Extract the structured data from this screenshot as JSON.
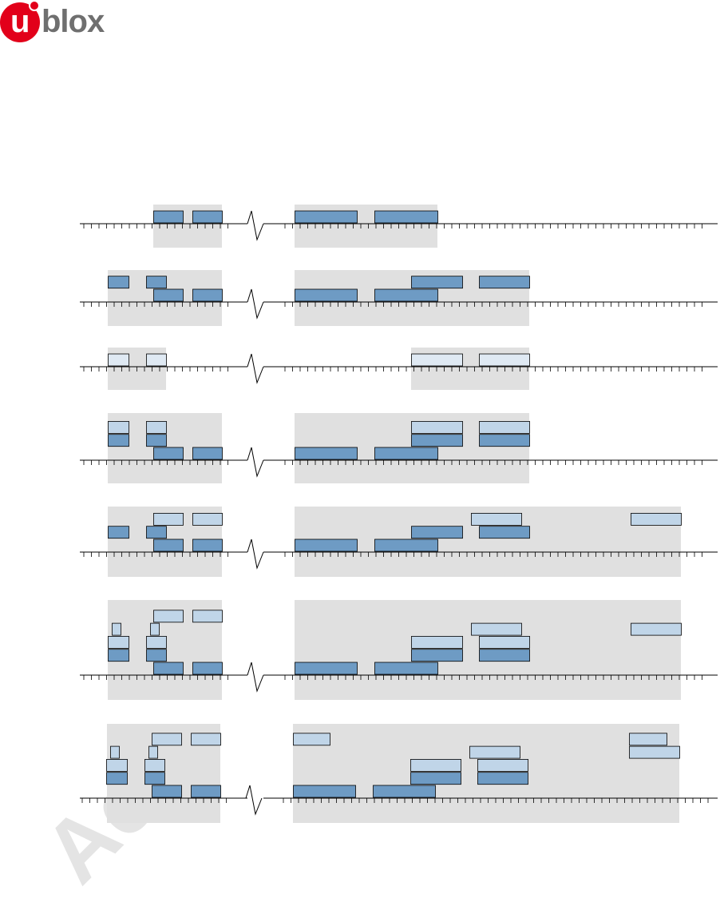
{
  "logo": {
    "u": "u",
    "rest": "blox"
  },
  "watermark": {
    "text": "Ac"
  },
  "colors": {
    "shade": "#e0e0e0",
    "dark_block": "#6e9bc4",
    "light_block": "#c0d5e8",
    "pale_block": "#dfe9f3",
    "stroke": "#000000"
  },
  "icons": [
    "timeline-axis",
    "axis-break-icon"
  ],
  "rows": [
    {
      "name": "row-1",
      "shades": [
        [
          192,
          278
        ],
        [
          369,
          548
        ]
      ],
      "blocks": [
        {
          "x0": 192,
          "x1": 229,
          "lvl": 1,
          "c": "dark"
        },
        {
          "x0": 241,
          "x1": 278,
          "lvl": 1,
          "c": "dark"
        },
        {
          "x0": 369,
          "x1": 447,
          "lvl": 1,
          "c": "dark"
        },
        {
          "x0": 469,
          "x1": 548,
          "lvl": 1,
          "c": "dark"
        }
      ]
    },
    {
      "name": "row-2",
      "shades": [
        [
          135,
          278
        ],
        [
          369,
          663
        ]
      ],
      "blocks": [
        {
          "x0": 135,
          "x1": 161,
          "lvl": 2,
          "c": "dark"
        },
        {
          "x0": 183,
          "x1": 208,
          "lvl": 2,
          "c": "dark"
        },
        {
          "x0": 515,
          "x1": 579,
          "lvl": 2,
          "c": "dark"
        },
        {
          "x0": 600,
          "x1": 663,
          "lvl": 2,
          "c": "dark"
        },
        {
          "x0": 192,
          "x1": 229,
          "lvl": 1,
          "c": "dark"
        },
        {
          "x0": 241,
          "x1": 278,
          "lvl": 1,
          "c": "dark"
        },
        {
          "x0": 369,
          "x1": 447,
          "lvl": 1,
          "c": "dark"
        },
        {
          "x0": 469,
          "x1": 548,
          "lvl": 1,
          "c": "dark"
        }
      ]
    },
    {
      "name": "row-3",
      "shades": [
        [
          135,
          208
        ],
        [
          515,
          663
        ]
      ],
      "blocks": [
        {
          "x0": 135,
          "x1": 161,
          "lvl": 1,
          "c": "pale"
        },
        {
          "x0": 183,
          "x1": 208,
          "lvl": 1,
          "c": "pale"
        },
        {
          "x0": 515,
          "x1": 579,
          "lvl": 1,
          "c": "pale"
        },
        {
          "x0": 600,
          "x1": 663,
          "lvl": 1,
          "c": "pale"
        }
      ]
    },
    {
      "name": "row-4",
      "shades": [
        [
          135,
          278
        ],
        [
          369,
          663
        ]
      ],
      "blocks": [
        {
          "x0": 135,
          "x1": 161,
          "lvl": 3,
          "c": "light"
        },
        {
          "x0": 183,
          "x1": 208,
          "lvl": 3,
          "c": "light"
        },
        {
          "x0": 515,
          "x1": 579,
          "lvl": 3,
          "c": "light"
        },
        {
          "x0": 600,
          "x1": 663,
          "lvl": 3,
          "c": "light"
        },
        {
          "x0": 135,
          "x1": 161,
          "lvl": 2,
          "c": "dark"
        },
        {
          "x0": 183,
          "x1": 208,
          "lvl": 2,
          "c": "dark"
        },
        {
          "x0": 515,
          "x1": 579,
          "lvl": 2,
          "c": "dark"
        },
        {
          "x0": 600,
          "x1": 663,
          "lvl": 2,
          "c": "dark"
        },
        {
          "x0": 192,
          "x1": 229,
          "lvl": 1,
          "c": "dark"
        },
        {
          "x0": 241,
          "x1": 278,
          "lvl": 1,
          "c": "dark"
        },
        {
          "x0": 369,
          "x1": 447,
          "lvl": 1,
          "c": "dark"
        },
        {
          "x0": 469,
          "x1": 548,
          "lvl": 1,
          "c": "dark"
        }
      ]
    },
    {
      "name": "row-5",
      "shades": [
        [
          135,
          278
        ],
        [
          369,
          853
        ]
      ],
      "blocks": [
        {
          "x0": 192,
          "x1": 229,
          "lvl": 3,
          "c": "light"
        },
        {
          "x0": 241,
          "x1": 278,
          "lvl": 3,
          "c": "light"
        },
        {
          "x0": 590,
          "x1": 653,
          "lvl": 3,
          "c": "light"
        },
        {
          "x0": 790,
          "x1": 853,
          "lvl": 3,
          "c": "light"
        },
        {
          "x0": 135,
          "x1": 161,
          "lvl": 2,
          "c": "dark"
        },
        {
          "x0": 183,
          "x1": 208,
          "lvl": 2,
          "c": "dark"
        },
        {
          "x0": 515,
          "x1": 579,
          "lvl": 2,
          "c": "dark"
        },
        {
          "x0": 600,
          "x1": 663,
          "lvl": 2,
          "c": "dark"
        },
        {
          "x0": 192,
          "x1": 229,
          "lvl": 1,
          "c": "dark"
        },
        {
          "x0": 241,
          "x1": 278,
          "lvl": 1,
          "c": "dark"
        },
        {
          "x0": 369,
          "x1": 447,
          "lvl": 1,
          "c": "dark"
        },
        {
          "x0": 469,
          "x1": 548,
          "lvl": 1,
          "c": "dark"
        }
      ]
    },
    {
      "name": "row-6",
      "shades": [
        [
          135,
          278
        ],
        [
          369,
          853
        ]
      ],
      "blocks": [
        {
          "x0": 192,
          "x1": 229,
          "lvl": 5,
          "c": "light"
        },
        {
          "x0": 241,
          "x1": 278,
          "lvl": 5,
          "c": "light"
        },
        {
          "x0": 140,
          "x1": 151,
          "lvl": 4,
          "c": "light"
        },
        {
          "x0": 188,
          "x1": 199,
          "lvl": 4,
          "c": "light"
        },
        {
          "x0": 590,
          "x1": 653,
          "lvl": 4,
          "c": "light"
        },
        {
          "x0": 790,
          "x1": 853,
          "lvl": 4,
          "c": "light"
        },
        {
          "x0": 135,
          "x1": 161,
          "lvl": 3,
          "c": "light"
        },
        {
          "x0": 183,
          "x1": 208,
          "lvl": 3,
          "c": "light"
        },
        {
          "x0": 515,
          "x1": 579,
          "lvl": 3,
          "c": "light"
        },
        {
          "x0": 600,
          "x1": 663,
          "lvl": 3,
          "c": "light"
        },
        {
          "x0": 135,
          "x1": 161,
          "lvl": 2,
          "c": "dark"
        },
        {
          "x0": 183,
          "x1": 208,
          "lvl": 2,
          "c": "dark"
        },
        {
          "x0": 515,
          "x1": 579,
          "lvl": 2,
          "c": "dark"
        },
        {
          "x0": 600,
          "x1": 663,
          "lvl": 2,
          "c": "dark"
        },
        {
          "x0": 192,
          "x1": 229,
          "lvl": 1,
          "c": "dark"
        },
        {
          "x0": 241,
          "x1": 278,
          "lvl": 1,
          "c": "dark"
        },
        {
          "x0": 369,
          "x1": 447,
          "lvl": 1,
          "c": "dark"
        },
        {
          "x0": 469,
          "x1": 548,
          "lvl": 1,
          "c": "dark"
        }
      ]
    },
    {
      "name": "row-7",
      "shades": [
        [
          134,
          276
        ],
        [
          367,
          851
        ]
      ],
      "blocks": [
        {
          "x0": 190,
          "x1": 227,
          "lvl": 5,
          "c": "light"
        },
        {
          "x0": 239,
          "x1": 276,
          "lvl": 5,
          "c": "light"
        },
        {
          "x0": 367,
          "x1": 413,
          "lvl": 5,
          "c": "light"
        },
        {
          "x0": 788,
          "x1": 835,
          "lvl": 5,
          "c": "light"
        },
        {
          "x0": 138,
          "x1": 149,
          "lvl": 4,
          "c": "light"
        },
        {
          "x0": 186,
          "x1": 197,
          "lvl": 4,
          "c": "light"
        },
        {
          "x0": 588,
          "x1": 651,
          "lvl": 4,
          "c": "light"
        },
        {
          "x0": 788,
          "x1": 851,
          "lvl": 4,
          "c": "light"
        },
        {
          "x0": 133,
          "x1": 159,
          "lvl": 3,
          "c": "light"
        },
        {
          "x0": 181,
          "x1": 206,
          "lvl": 3,
          "c": "light"
        },
        {
          "x0": 514,
          "x1": 577,
          "lvl": 3,
          "c": "light"
        },
        {
          "x0": 598,
          "x1": 661,
          "lvl": 3,
          "c": "light"
        },
        {
          "x0": 133,
          "x1": 159,
          "lvl": 2,
          "c": "dark"
        },
        {
          "x0": 181,
          "x1": 206,
          "lvl": 2,
          "c": "dark"
        },
        {
          "x0": 514,
          "x1": 577,
          "lvl": 2,
          "c": "dark"
        },
        {
          "x0": 598,
          "x1": 661,
          "lvl": 2,
          "c": "dark"
        },
        {
          "x0": 190,
          "x1": 227,
          "lvl": 1,
          "c": "dark"
        },
        {
          "x0": 239,
          "x1": 276,
          "lvl": 1,
          "c": "dark"
        },
        {
          "x0": 367,
          "x1": 445,
          "lvl": 1,
          "c": "dark"
        },
        {
          "x0": 467,
          "x1": 545,
          "lvl": 1,
          "c": "dark"
        }
      ]
    }
  ]
}
